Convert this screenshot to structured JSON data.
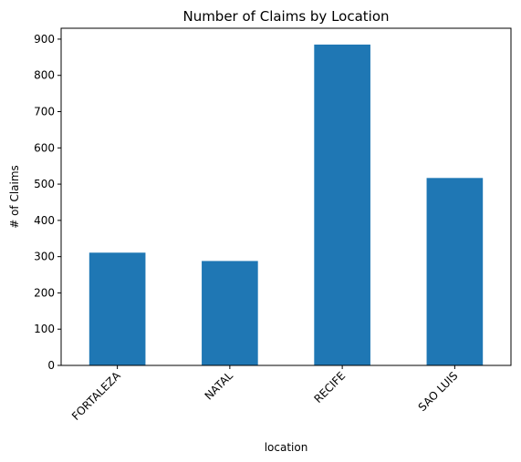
{
  "chart_data": {
    "type": "bar",
    "title": "Number of Claims by Location",
    "xlabel": "location",
    "ylabel": "# of Claims",
    "categories": [
      "FORTALEZA",
      "NATAL",
      "RECIFE",
      "SAO LUIS"
    ],
    "values": [
      311,
      288,
      885,
      517
    ],
    "ylim": [
      0,
      930
    ],
    "yticks": [
      0,
      100,
      200,
      300,
      400,
      500,
      600,
      700,
      800,
      900
    ],
    "grid": false,
    "bar_color": "#1f77b4"
  }
}
